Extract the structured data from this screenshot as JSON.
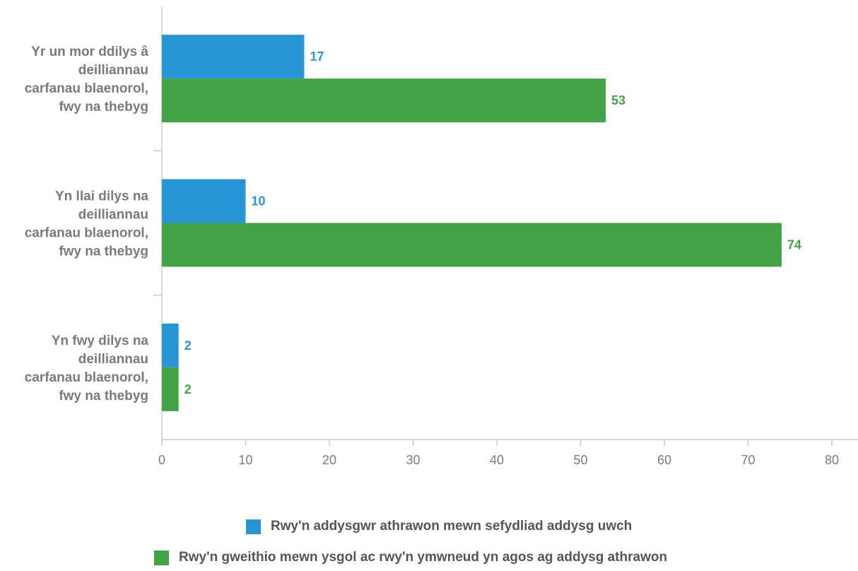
{
  "chart_data": {
    "type": "bar",
    "orientation": "horizontal",
    "categories": [
      "Yr un mor ddilys â deilliannau carfanau blaenorol, fwy na thebyg",
      "Yn llai dilys na deilliannau carfanau blaenorol, fwy na thebyg",
      "Yn fwy dilys na deilliannau carfanau blaenorol, fwy na thebyg"
    ],
    "category_lines": [
      [
        "Yr un mor ddilys â",
        "deilliannau",
        "carfanau blaenorol,",
        "fwy na thebyg"
      ],
      [
        "Yn llai dilys na",
        "deilliannau",
        "carfanau blaenorol,",
        "fwy na thebyg"
      ],
      [
        "Yn fwy dilys na",
        "deilliannau",
        "carfanau blaenorol,",
        "fwy na thebyg"
      ]
    ],
    "series": [
      {
        "name": "Rwy'n addysgwr athrawon mewn sefydliad addysg uwch",
        "color": "#2896d6",
        "values": [
          17,
          10,
          2
        ]
      },
      {
        "name": "Rwy'n gweithio mewn ysgol ac rwy'n ymwneud yn agos ag addysg athrawon",
        "color": "#41a346",
        "values": [
          53,
          74,
          2
        ]
      }
    ],
    "xlim": [
      0,
      80
    ],
    "xticks": [
      0,
      10,
      20,
      30,
      40,
      50,
      60,
      70,
      80
    ],
    "grid": false,
    "data_labels": true,
    "legend_position": "bottom",
    "title": "",
    "xlabel": "",
    "ylabel": ""
  }
}
